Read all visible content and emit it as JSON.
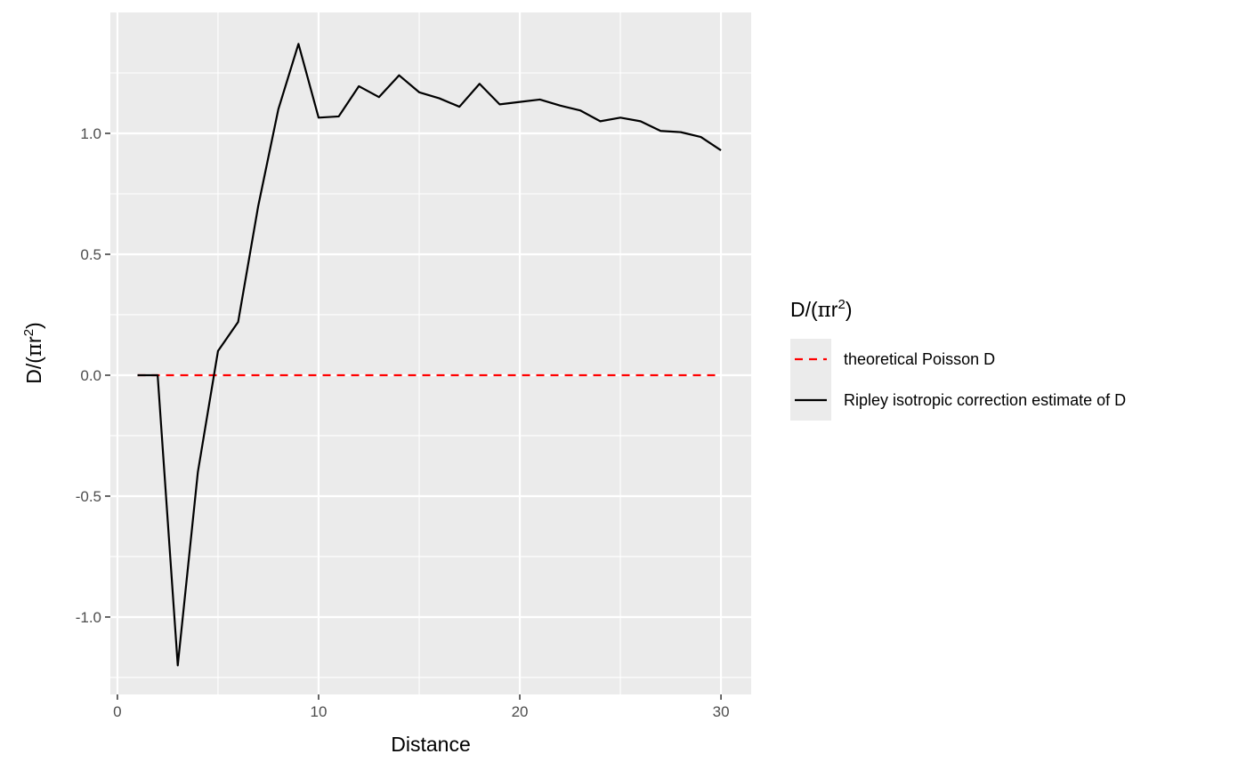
{
  "chart_data": {
    "type": "line",
    "title": "",
    "xlabel": "Distance",
    "ylabel_parts": {
      "base": "D/(",
      "pi": "π",
      "r": "r",
      "sup": "2",
      "close": ")"
    },
    "xlim": [
      -0.35,
      31.5
    ],
    "ylim": [
      -1.32,
      1.5
    ],
    "x_ticks": [
      0,
      10,
      20,
      30
    ],
    "x_tick_labels": [
      "0",
      "10",
      "20",
      "30"
    ],
    "y_ticks": [
      -1.0,
      -0.5,
      0.0,
      0.5,
      1.0
    ],
    "y_tick_labels": [
      "-1.0",
      "-0.5",
      "0.0",
      "0.5",
      "1.0"
    ],
    "grid": true,
    "legend_position": "right",
    "legend_title_parts": {
      "base": "D/(",
      "pi": "π",
      "r": "r",
      "sup": "2",
      "close": ")"
    },
    "series": [
      {
        "name": "theoretical Poisson D",
        "color": "#ff0000",
        "dash": "dashed",
        "x": [
          1,
          30
        ],
        "y": [
          0,
          0
        ]
      },
      {
        "name": "Ripley isotropic correction estimate of D",
        "color": "#000000",
        "dash": "solid",
        "x": [
          1,
          2,
          3,
          4,
          5,
          6,
          7,
          8,
          9,
          10,
          11,
          12,
          13,
          14,
          15,
          16,
          17,
          18,
          19,
          20,
          21,
          22,
          23,
          24,
          25,
          26,
          27,
          28,
          29,
          30
        ],
        "y": [
          0,
          0,
          -1.2,
          -0.4,
          0.1,
          0.22,
          0.7,
          1.1,
          1.37,
          1.065,
          1.07,
          1.195,
          1.15,
          1.24,
          1.17,
          1.145,
          1.11,
          1.205,
          1.12,
          1.13,
          1.14,
          1.115,
          1.095,
          1.05,
          1.065,
          1.05,
          1.01,
          1.005,
          0.985,
          0.93
        ]
      }
    ]
  }
}
